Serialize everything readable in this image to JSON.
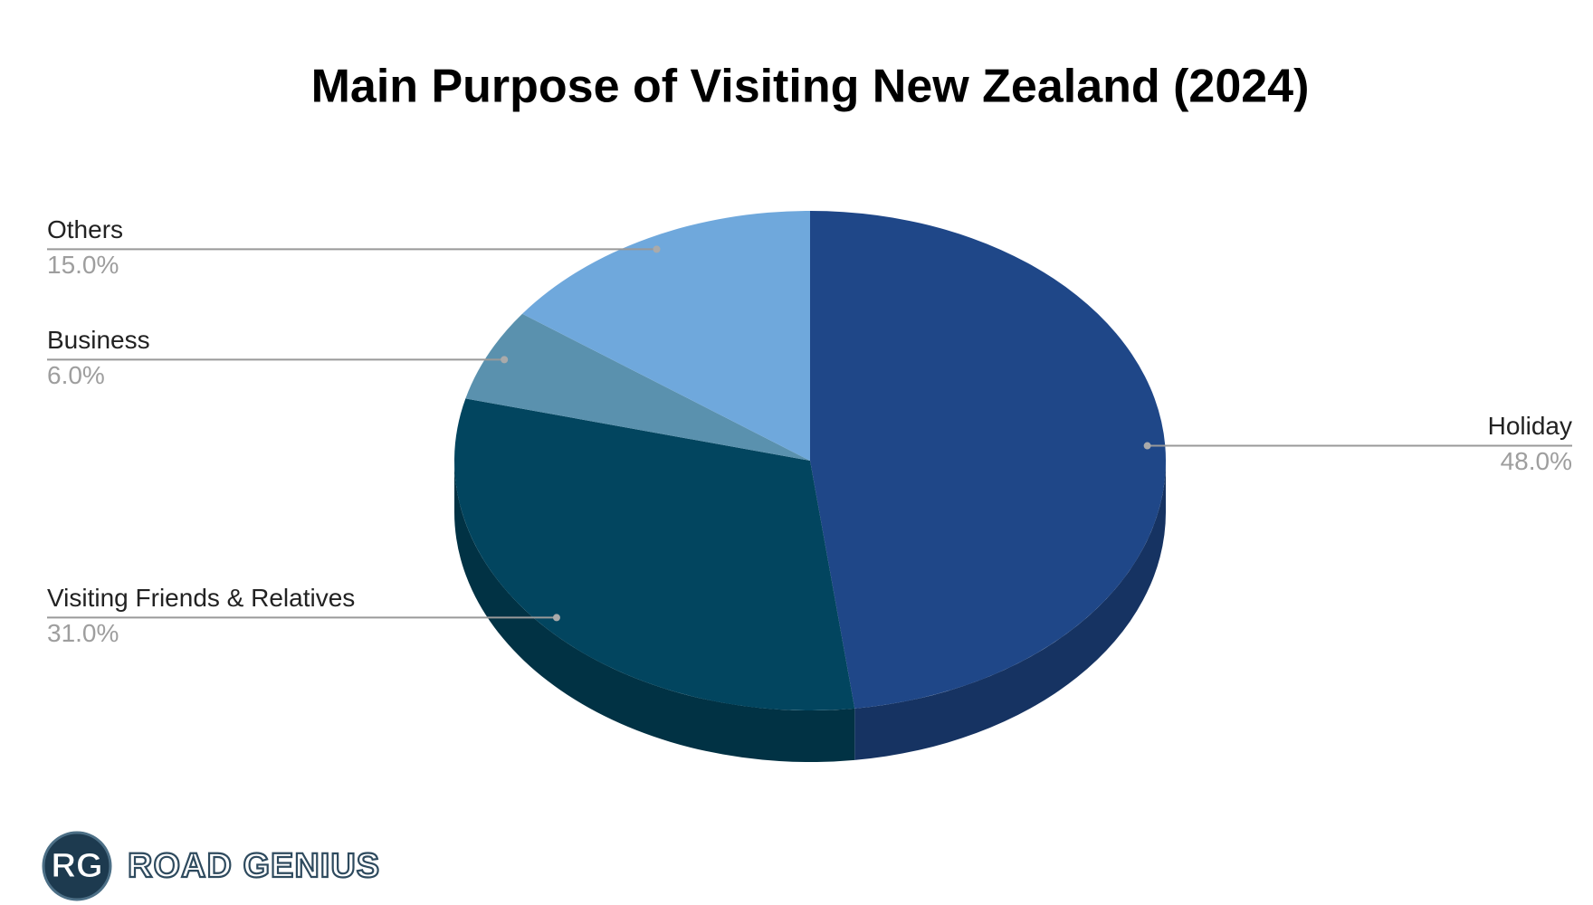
{
  "chart_data": {
    "type": "pie",
    "title": "Main Purpose of Visiting New Zealand (2024)",
    "categories": [
      "Holiday",
      "Visiting Friends & Relatives",
      "Business",
      "Others"
    ],
    "values": [
      48,
      31,
      6,
      15
    ],
    "value_labels": [
      "48.0%",
      "31.0%",
      "6.0%",
      "15.0%"
    ],
    "colors": [
      "#1f4788",
      "#02455f",
      "#5a91ae",
      "#6fa8dc"
    ]
  },
  "branding": {
    "initials": "RG",
    "name": "ROAD GENIUS"
  }
}
